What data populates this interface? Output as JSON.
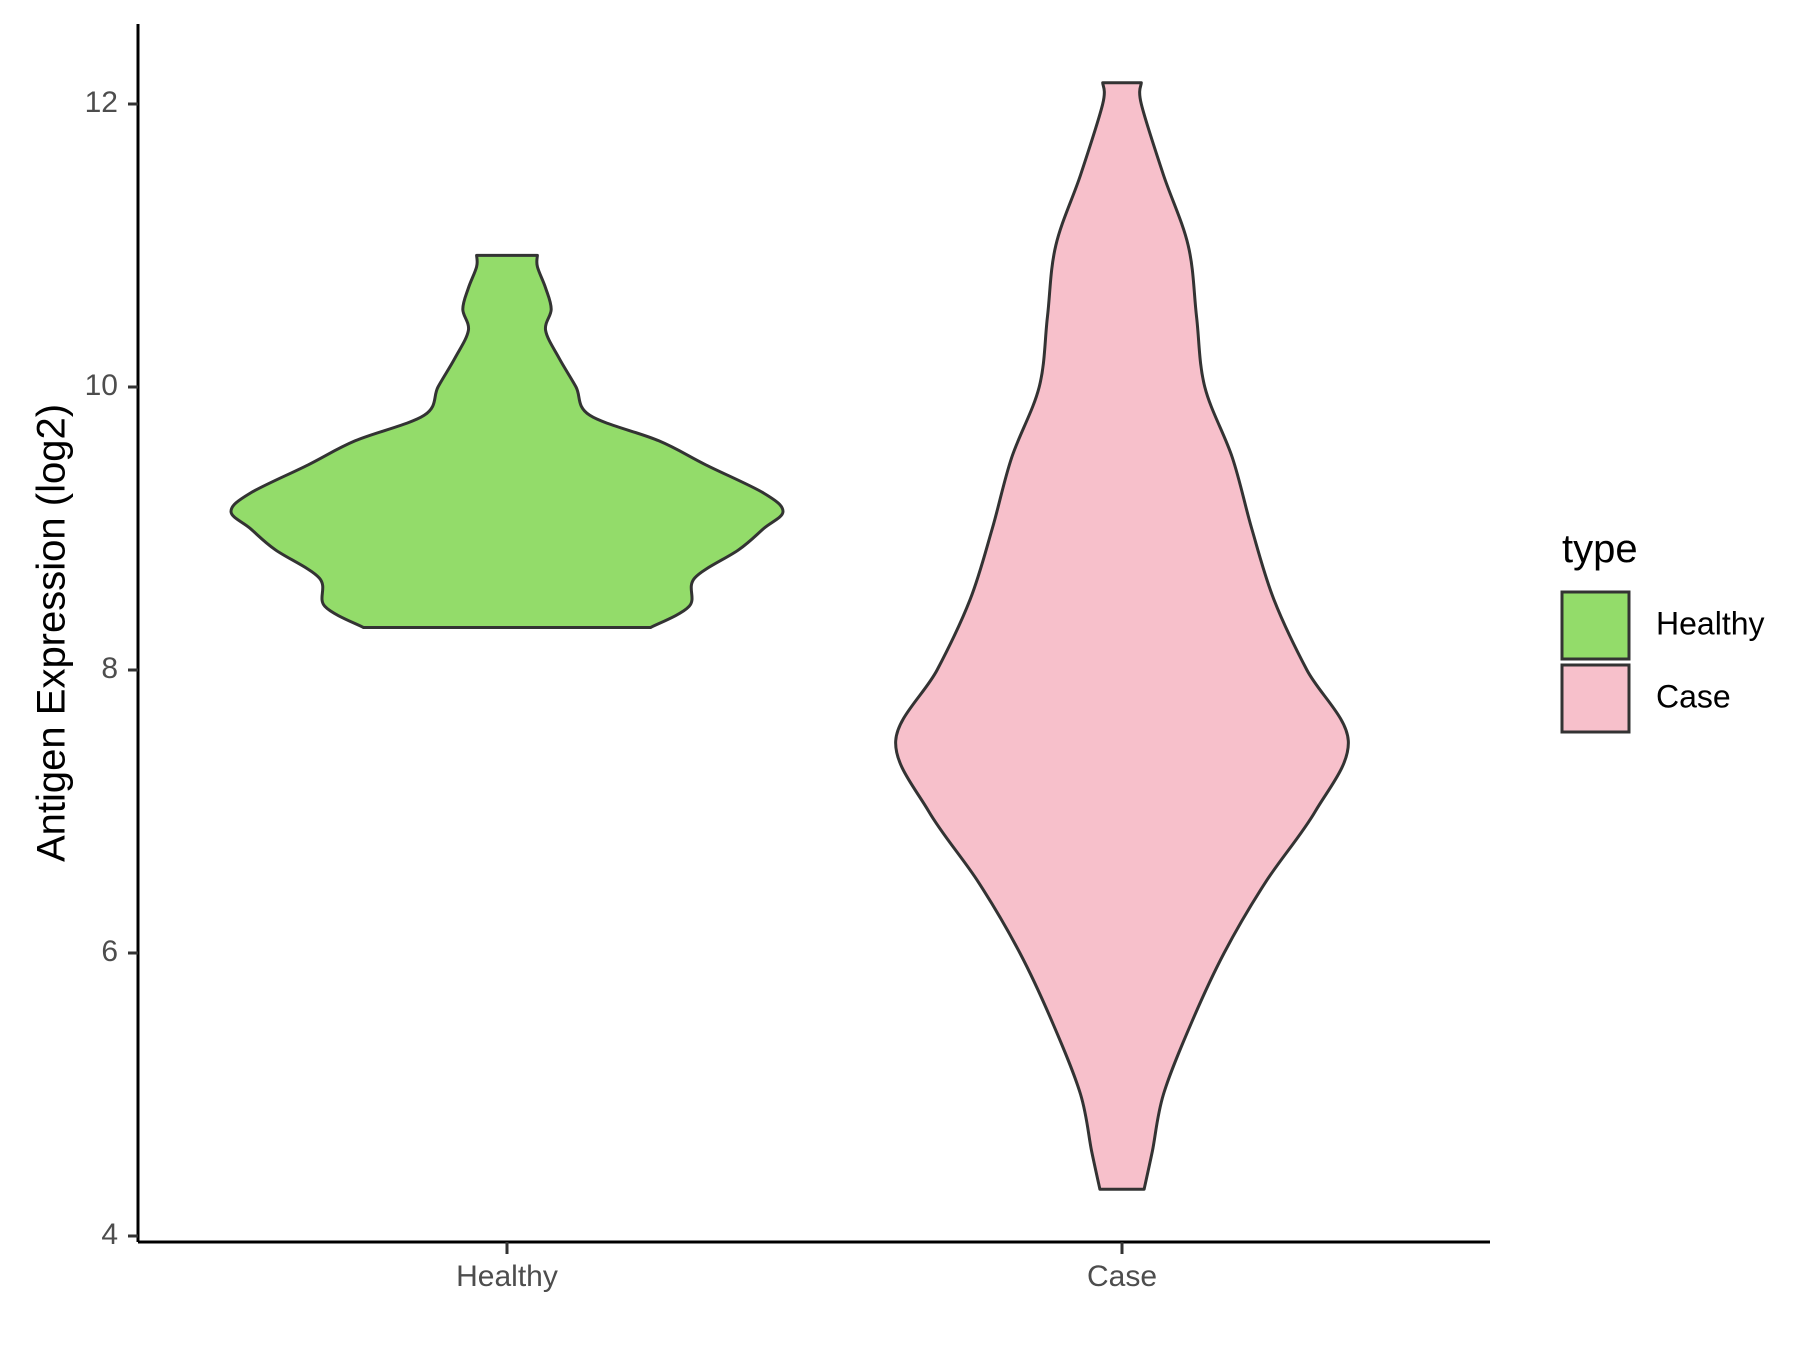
{
  "chart_data": {
    "type": "violin",
    "title": "",
    "xlabel": "",
    "ylabel": "Antigen Expression (log2)",
    "categories": [
      "Healthy",
      "Case"
    ],
    "ylim": [
      4,
      12.6
    ],
    "yticks": [
      4,
      6,
      8,
      10,
      12
    ],
    "grid": false,
    "legend": {
      "title": "type",
      "position": "right",
      "entries": [
        {
          "label": "Healthy",
          "color": "#93dc6a"
        },
        {
          "label": "Case",
          "color": "#f7c0cb"
        }
      ]
    },
    "series": [
      {
        "name": "Healthy",
        "color": "#93dc6a",
        "min": 8.3,
        "max": 10.93,
        "density_profile": [
          [
            8.3,
            0.52
          ],
          [
            8.45,
            0.66
          ],
          [
            8.65,
            0.68
          ],
          [
            8.85,
            0.84
          ],
          [
            9.0,
            0.93
          ],
          [
            9.12,
            1.0
          ],
          [
            9.25,
            0.93
          ],
          [
            9.45,
            0.72
          ],
          [
            9.62,
            0.55
          ],
          [
            9.8,
            0.3
          ],
          [
            10.0,
            0.25
          ],
          [
            10.2,
            0.19
          ],
          [
            10.4,
            0.14
          ],
          [
            10.55,
            0.16
          ],
          [
            10.7,
            0.14
          ],
          [
            10.85,
            0.11
          ],
          [
            10.93,
            0.11
          ]
        ]
      },
      {
        "name": "Case",
        "color": "#f7c0cb",
        "min": 4.33,
        "max": 12.15,
        "density_profile": [
          [
            4.33,
            0.08
          ],
          [
            4.6,
            0.11
          ],
          [
            5.0,
            0.15
          ],
          [
            5.5,
            0.25
          ],
          [
            6.0,
            0.37
          ],
          [
            6.5,
            0.52
          ],
          [
            7.0,
            0.7
          ],
          [
            7.5,
            0.82
          ],
          [
            8.0,
            0.67
          ],
          [
            8.5,
            0.55
          ],
          [
            9.0,
            0.47
          ],
          [
            9.5,
            0.4
          ],
          [
            10.0,
            0.3
          ],
          [
            10.5,
            0.27
          ],
          [
            11.0,
            0.24
          ],
          [
            11.5,
            0.15
          ],
          [
            12.0,
            0.07
          ],
          [
            12.15,
            0.07
          ]
        ]
      }
    ]
  }
}
